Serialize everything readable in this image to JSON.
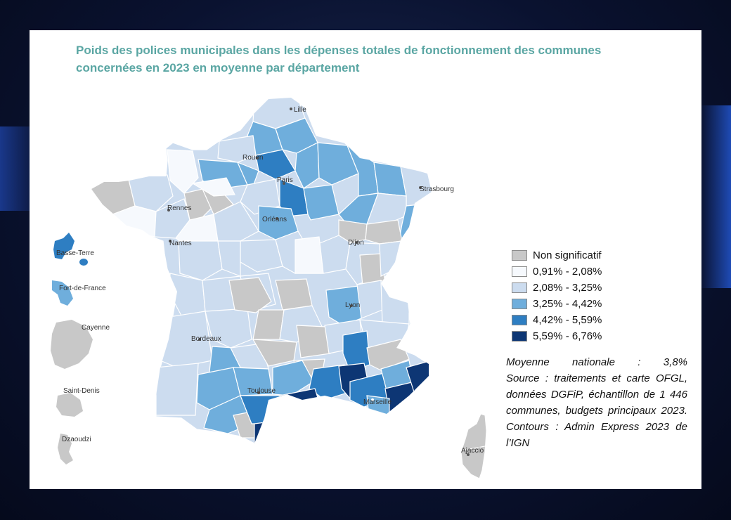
{
  "title": "Poids des polices municipales dans les dépenses totales de fonctionnement des communes concernées en 2023 en moyenne par département",
  "cities": {
    "lille": "Lille",
    "rouen": "Rouen",
    "paris": "Paris",
    "strasbourg": "Strasbourg",
    "rennes": "Rennes",
    "orleans": "Orléans",
    "nantes": "Nantes",
    "dijon": "Dijon",
    "lyon": "Lyon",
    "bordeaux": "Bordeaux",
    "toulouse": "Toulouse",
    "marseille": "Marseille",
    "ajaccio": "Ajaccio",
    "basse_terre": "Basse-Terre",
    "fort_de_france": "Fort-de-France",
    "cayenne": "Cayenne",
    "saint_denis": "Saint-Denis",
    "dzaoudzi": "Dzaoudzi"
  },
  "legend": [
    {
      "label": "Non significatif",
      "color": "#c8c8c8"
    },
    {
      "label": "0,91% - 2,08%",
      "color": "#f6f9fd"
    },
    {
      "label": "2,08% - 3,25%",
      "color": "#ccdcef"
    },
    {
      "label": "3,25% - 4,42%",
      "color": "#6faedc"
    },
    {
      "label": "4,42% - 5,59%",
      "color": "#2e7ec2"
    },
    {
      "label": "5,59% - 6,76%",
      "color": "#0d3674"
    }
  ],
  "note": {
    "average": "Moyenne nationale : 3,8%",
    "source": "Source : traitements et carte OFGL, données DGFiP, échantillon de 1 446 communes, budgets principaux 2023. Contours : Admin Express 2023 de l’IGN"
  }
}
